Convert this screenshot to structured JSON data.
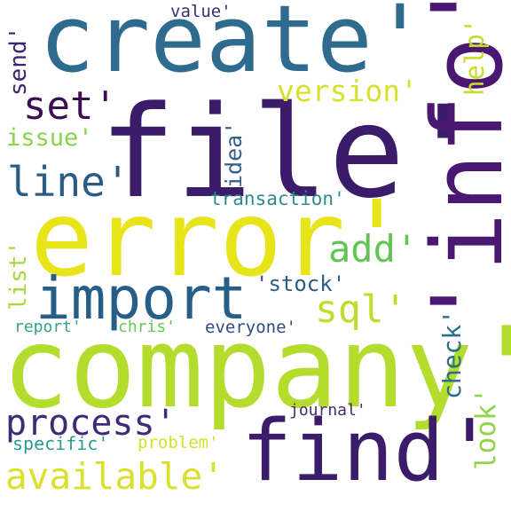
{
  "word_cloud": {
    "background": "#ffffff",
    "words": [
      {
        "id": "create",
        "text": "create'",
        "color": "#2f6a8f"
      },
      {
        "id": "file",
        "text": "file'",
        "color": "#3b1c6b"
      },
      {
        "id": "error",
        "text": "error'",
        "color": "#e8e41a"
      },
      {
        "id": "info",
        "text": "'info'",
        "color": "#4a1873"
      },
      {
        "id": "company",
        "text": "company'",
        "color": "#b3dc2d"
      },
      {
        "id": "find",
        "text": "find'",
        "color": "#3b1c6b"
      },
      {
        "id": "import",
        "text": "import",
        "color": "#275e87"
      },
      {
        "id": "process",
        "text": "process'",
        "color": "#3e2a76"
      },
      {
        "id": "available",
        "text": "available'",
        "color": "#dbe02c"
      },
      {
        "id": "set",
        "text": "set'",
        "color": "#3c0f55"
      },
      {
        "id": "line",
        "text": "line'",
        "color": "#2b5c86"
      },
      {
        "id": "version",
        "text": "version'",
        "color": "#d7e12b"
      },
      {
        "id": "add",
        "text": "add'",
        "color": "#62c553"
      },
      {
        "id": "sql",
        "text": "sql'",
        "color": "#bcdd2b"
      },
      {
        "id": "issue",
        "text": "issue'",
        "color": "#8ad34a"
      },
      {
        "id": "stock",
        "text": "'stock'",
        "color": "#2d5e84"
      },
      {
        "id": "transaction",
        "text": "transaction'",
        "color": "#2f8a8b"
      },
      {
        "id": "value",
        "text": "value'",
        "color": "#3a2f73"
      },
      {
        "id": "report",
        "text": "report'",
        "color": "#34a38b"
      },
      {
        "id": "chris",
        "text": "chris'",
        "color": "#63c856"
      },
      {
        "id": "everyone",
        "text": "everyone'",
        "color": "#2f4c81"
      },
      {
        "id": "journal",
        "text": "journal'",
        "color": "#3e2f74"
      },
      {
        "id": "specific",
        "text": "specific'",
        "color": "#2a9b8e"
      },
      {
        "id": "problem",
        "text": "problem'",
        "color": "#d4e12a"
      },
      {
        "id": "send",
        "text": "send'",
        "color": "#3e2471"
      },
      {
        "id": "idea",
        "text": "idea'",
        "color": "#34608a"
      },
      {
        "id": "help",
        "text": "help'",
        "color": "#c5db2b"
      },
      {
        "id": "list",
        "text": "list'",
        "color": "#a6d93b"
      },
      {
        "id": "check",
        "text": "check'",
        "color": "#2a6d8c"
      },
      {
        "id": "look",
        "text": "look'",
        "color": "#90d548"
      }
    ]
  }
}
